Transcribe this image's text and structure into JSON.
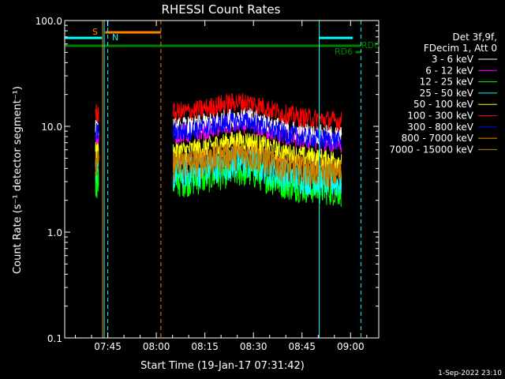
{
  "chart_data": {
    "type": "line",
    "title": "RHESSI Count Rates",
    "xlabel": "Start Time (19-Jan-17 07:31:42)",
    "ylabel": "Count Rate (s⁻¹ detector segment⁻¹)",
    "y_scale": "log",
    "ylim": [
      0.1,
      100.0
    ],
    "xlim_minutes": [
      0,
      97
    ],
    "x_ticks": [
      {
        "label": "07:45",
        "minute": 13.3
      },
      {
        "label": "08:00",
        "minute": 28.3
      },
      {
        "label": "08:15",
        "minute": 43.3
      },
      {
        "label": "08:30",
        "minute": 58.3
      },
      {
        "label": "08:45",
        "minute": 73.3
      },
      {
        "label": "09:00",
        "minute": 88.3
      }
    ],
    "y_ticks": [
      {
        "label": "0.1",
        "value": 0.1
      },
      {
        "label": "1.0",
        "value": 1.0
      },
      {
        "label": "10.0",
        "value": 10.0
      },
      {
        "label": "100.0",
        "value": 100.0
      }
    ],
    "grid": false,
    "legend_header": [
      "Det 3f,9f,",
      "FDecim 1, Att 0"
    ],
    "legend_position": "right",
    "series": [
      {
        "name": "3 - 6 keV",
        "color": "#ffffff",
        "level": 10.5
      },
      {
        "name": "6 - 12 keV",
        "color": "#ff00ff",
        "level": 9.0
      },
      {
        "name": "12 - 25 keV",
        "color": "#00ff00",
        "level": 3.2
      },
      {
        "name": "25 - 50 keV",
        "color": "#00ffff",
        "level": 3.8
      },
      {
        "name": "50 - 100 keV",
        "color": "#ffff00",
        "level": 6.3
      },
      {
        "name": "100 - 300 keV",
        "color": "#ff0000",
        "level": 14.5
      },
      {
        "name": "300 - 800 keV",
        "color": "#0000ff",
        "level": 9.5
      },
      {
        "name": "800 - 7000 keV",
        "color": "#ff8000",
        "level": 5.0
      },
      {
        "name": "7000 - 15000 keV",
        "color": "#c08000",
        "level": 4.6
      }
    ],
    "data_segments_minutes": [
      [
        9.5,
        10.5
      ],
      [
        33.5,
        85.5
      ]
    ],
    "annotations": {
      "saa_label": "S",
      "night_label": "N",
      "rd0_label": "RD0",
      "rd6_label": "RD6",
      "saa_color": "#ff8000",
      "night_color": "#00ffff",
      "rd_color": "#008000"
    },
    "footer_date": "1-Sep-2022 23:10"
  }
}
